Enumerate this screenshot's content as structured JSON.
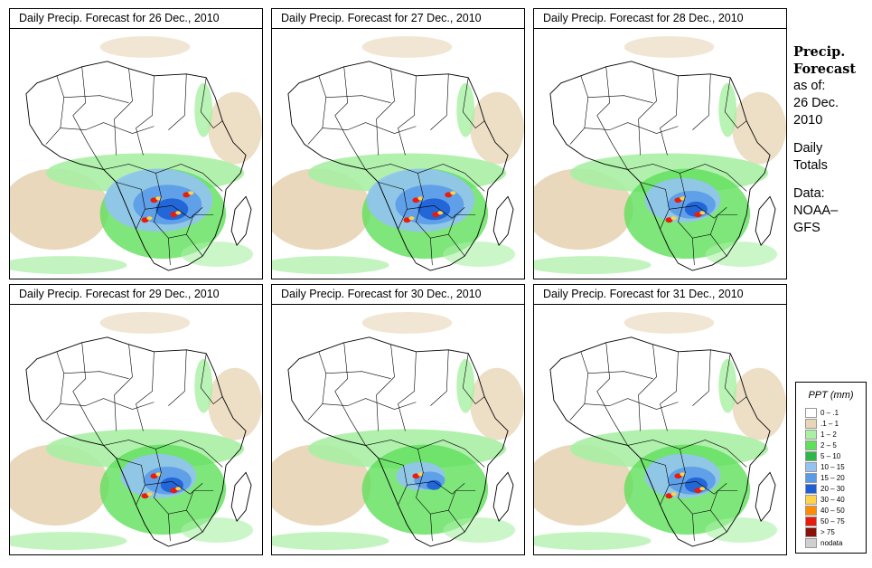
{
  "panels": [
    {
      "title": "Daily Precip. Forecast for  26 Dec., 2010",
      "intensity": "high"
    },
    {
      "title": "Daily Precip. Forecast for  27 Dec., 2010",
      "intensity": "high"
    },
    {
      "title": "Daily Precip. Forecast for  28 Dec., 2010",
      "intensity": "medium"
    },
    {
      "title": "Daily Precip. Forecast for  29 Dec., 2010",
      "intensity": "medium"
    },
    {
      "title": "Daily Precip. Forecast for  30 Dec., 2010",
      "intensity": "low"
    },
    {
      "title": "Daily Precip. Forecast for  31 Dec., 2010",
      "intensity": "medium"
    }
  ],
  "sidebar": {
    "title_line1": "Precip.",
    "title_line2": "Forecast",
    "asof_line1": "as of:",
    "asof_line2": "26 Dec.",
    "asof_line3": "2010",
    "totals_line1": "Daily",
    "totals_line2": "Totals",
    "data_line1": "Data:",
    "data_line2": "NOAA–",
    "data_line3": "GFS"
  },
  "legend": {
    "title": "PPT (mm)",
    "items": [
      {
        "label": "0 – .1",
        "color": "#ffffff"
      },
      {
        "label": ".1 – 1",
        "color": "#e8d6b8"
      },
      {
        "label": "1 – 2",
        "color": "#a9f0a4"
      },
      {
        "label": "2 – 5",
        "color": "#5fe05a"
      },
      {
        "label": "5 – 10",
        "color": "#2fb84a"
      },
      {
        "label": "10 – 15",
        "color": "#92c3f2"
      },
      {
        "label": "15 – 20",
        "color": "#5a9be8"
      },
      {
        "label": "20 – 30",
        "color": "#1c5fd6"
      },
      {
        "label": "30 – 40",
        "color": "#ffd34a"
      },
      {
        "label": "40 – 50",
        "color": "#ff8c00"
      },
      {
        "label": "50 – 75",
        "color": "#e81c0c"
      },
      {
        "label": "> 75",
        "color": "#8a1208"
      },
      {
        "label": "nodata",
        "color": "#cfcfcf"
      }
    ]
  }
}
